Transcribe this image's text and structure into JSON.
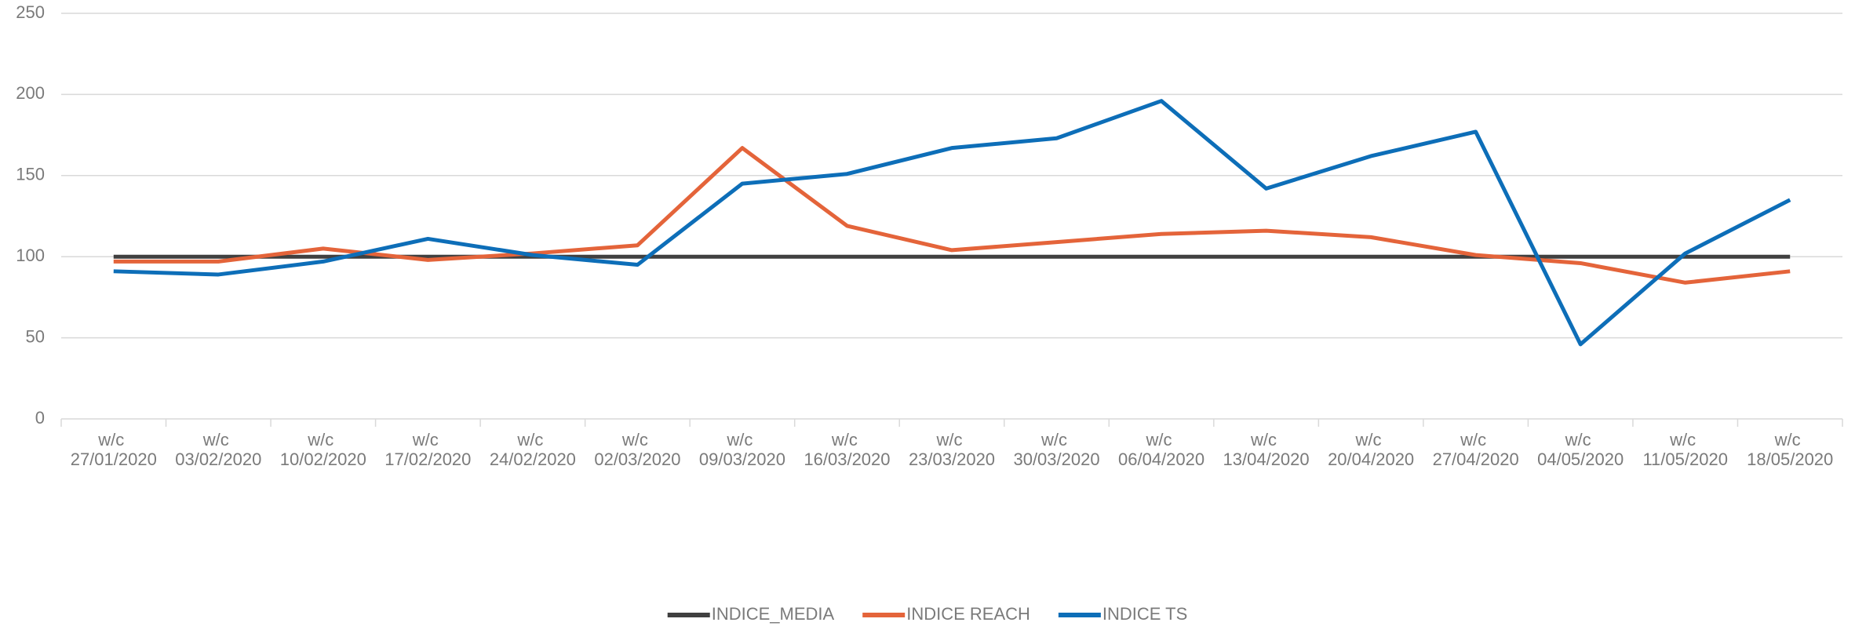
{
  "chart_data": {
    "type": "line",
    "categories": [
      "w/c 27/01/2020",
      "w/c 03/02/2020",
      "w/c 10/02/2020",
      "w/c 17/02/2020",
      "w/c 24/02/2020",
      "w/c 02/03/2020",
      "w/c 09/03/2020",
      "w/c 16/03/2020",
      "w/c 23/03/2020",
      "w/c 30/03/2020",
      "w/c 06/04/2020",
      "w/c 13/04/2020",
      "w/c 20/04/2020",
      "w/c 27/04/2020",
      "w/c 04/05/2020",
      "w/c 11/05/2020",
      "w/c 18/05/2020"
    ],
    "series": [
      {
        "name": "INDICE_MEDIA",
        "color": "#404040",
        "values": [
          100,
          100,
          100,
          100,
          100,
          100,
          100,
          100,
          100,
          100,
          100,
          100,
          100,
          100,
          100,
          100,
          100
        ]
      },
      {
        "name": "INDICE REACH",
        "color": "#e4643a",
        "values": [
          97,
          97,
          105,
          98,
          102,
          107,
          167,
          119,
          104,
          109,
          114,
          116,
          112,
          101,
          96,
          84,
          91
        ]
      },
      {
        "name": "INDICE TS",
        "color": "#0d6eb8",
        "values": [
          91,
          89,
          97,
          111,
          101,
          95,
          145,
          151,
          167,
          173,
          196,
          142,
          162,
          177,
          46,
          102,
          135
        ]
      }
    ],
    "ylim": [
      0,
      250
    ],
    "yticks": [
      0,
      50,
      100,
      150,
      200,
      250
    ],
    "grid": true,
    "legend": "bottom"
  }
}
